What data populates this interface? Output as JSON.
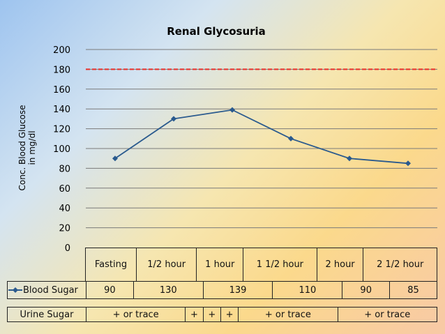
{
  "chart_data": {
    "type": "line",
    "title": "Renal Glycosuria",
    "ylabel_line1": "Conc. Blood Glucose",
    "ylabel_line2": "in mg/dl",
    "ylim": [
      0,
      200
    ],
    "yticks": [
      "0",
      "20",
      "40",
      "60",
      "80",
      "100",
      "120",
      "140",
      "160",
      "180",
      "200"
    ],
    "threshold": 180,
    "categories": [
      "Fasting",
      "1/2 hour",
      "1 hour",
      "1 1/2 hour",
      "2 hour",
      "2 1/2 hour"
    ],
    "series": [
      {
        "name": "Blood Sugar",
        "values": [
          90,
          130,
          139,
          110,
          90,
          85
        ],
        "display": [
          "90",
          "130",
          "139",
          "110",
          "90",
          "85"
        ]
      }
    ],
    "urine_label": "Urine Sugar",
    "urine_values": [
      "+ or trace",
      "+",
      "+",
      "+",
      "+ or trace",
      "+ or trace"
    ],
    "colors": {
      "series": "#2a5a8e",
      "threshold": "#e8302b",
      "grid": "#7a7a7a"
    }
  }
}
